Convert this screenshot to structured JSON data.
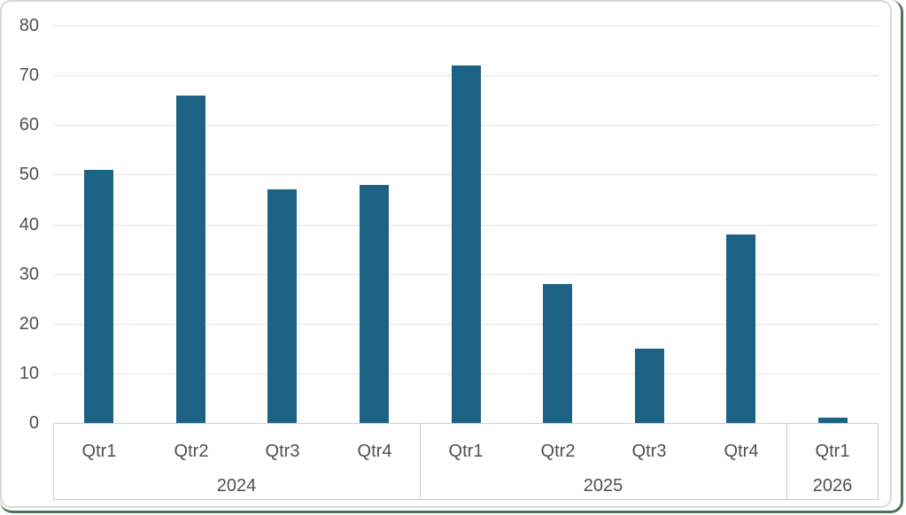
{
  "chart_data": {
    "type": "bar",
    "title": "",
    "xlabel": "",
    "ylabel": "",
    "ylim": [
      0,
      80
    ],
    "ytick_step": 10,
    "yticks": [
      0,
      10,
      20,
      30,
      40,
      50,
      60,
      70,
      80
    ],
    "grid": true,
    "legend": false,
    "legend_position": "none",
    "bar_color": "#1c6284",
    "axis_label_color": "#4f4f4f",
    "gridline_color": "#e3e3e3",
    "axis_band_border_color": "#cfcfcf",
    "frame_border_color": "#d8d8d8",
    "window_edge_color": "#4b7254",
    "categories": [
      "Qtr1",
      "Qtr2",
      "Qtr3",
      "Qtr4",
      "Qtr1",
      "Qtr2",
      "Qtr3",
      "Qtr4",
      "Qtr1"
    ],
    "values": [
      51,
      66,
      47,
      48,
      72,
      28,
      15,
      38,
      1
    ],
    "groups": [
      {
        "year": "2024",
        "quarters": [
          "Qtr1",
          "Qtr2",
          "Qtr3",
          "Qtr4"
        ],
        "values": [
          51,
          66,
          47,
          48
        ]
      },
      {
        "year": "2025",
        "quarters": [
          "Qtr1",
          "Qtr2",
          "Qtr3",
          "Qtr4"
        ],
        "values": [
          72,
          28,
          15,
          38
        ]
      },
      {
        "year": "2026",
        "quarters": [
          "Qtr1"
        ],
        "values": [
          1
        ]
      }
    ]
  }
}
